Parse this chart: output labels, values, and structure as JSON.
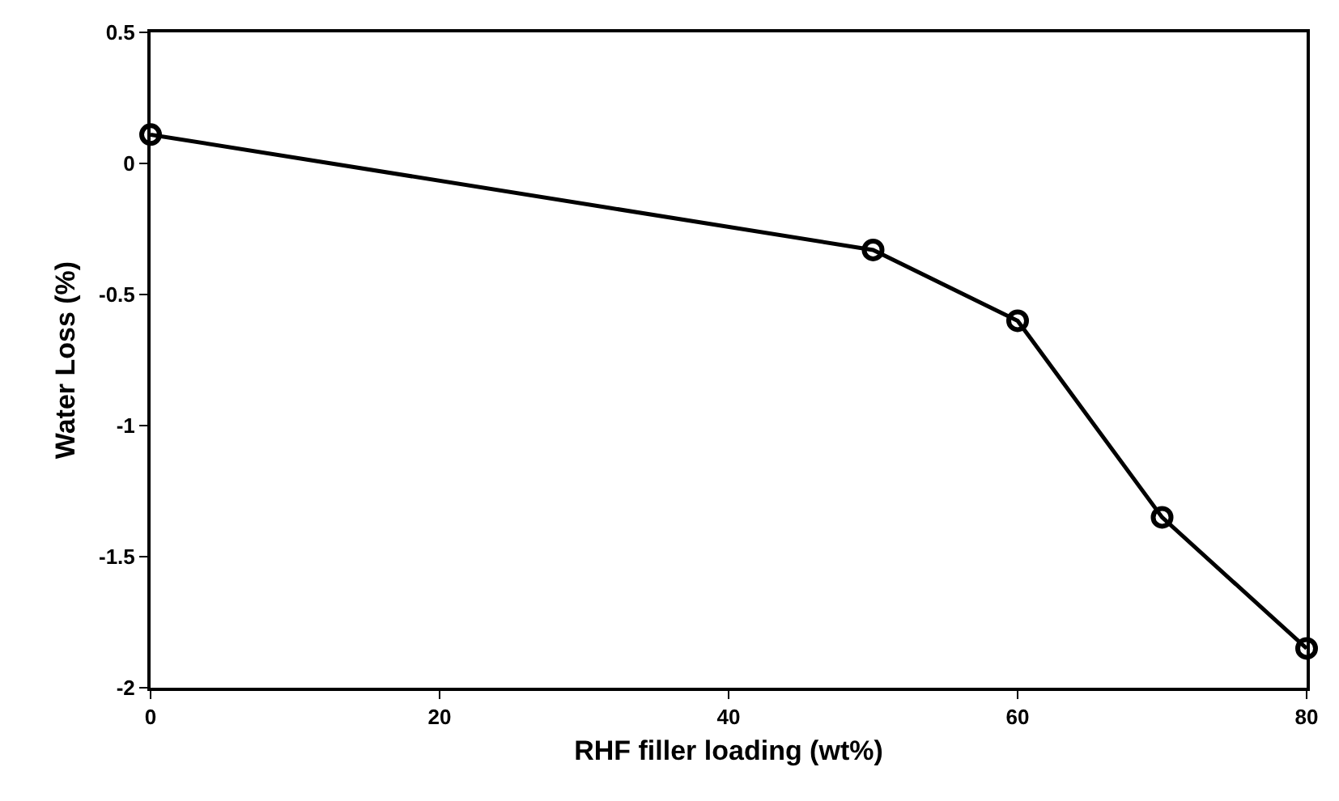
{
  "chart_data": {
    "type": "line",
    "xlabel": "RHF filler loading (wt%)",
    "ylabel": "Water Loss (%)",
    "x": [
      0,
      50,
      60,
      70,
      80
    ],
    "series": [
      {
        "color": "#000000",
        "values": [
          0.11,
          -0.33,
          -0.6,
          -1.35,
          -1.85
        ]
      }
    ],
    "xlim": [
      0,
      80
    ],
    "xticks": [
      0,
      20,
      40,
      60,
      80
    ],
    "ylim": [
      -2,
      0.5
    ],
    "yticks": [
      -2,
      -1.5,
      -1,
      -0.5,
      0,
      0.5
    ],
    "grid": false,
    "legend": false,
    "marker": "circle",
    "line_style": "solid"
  }
}
